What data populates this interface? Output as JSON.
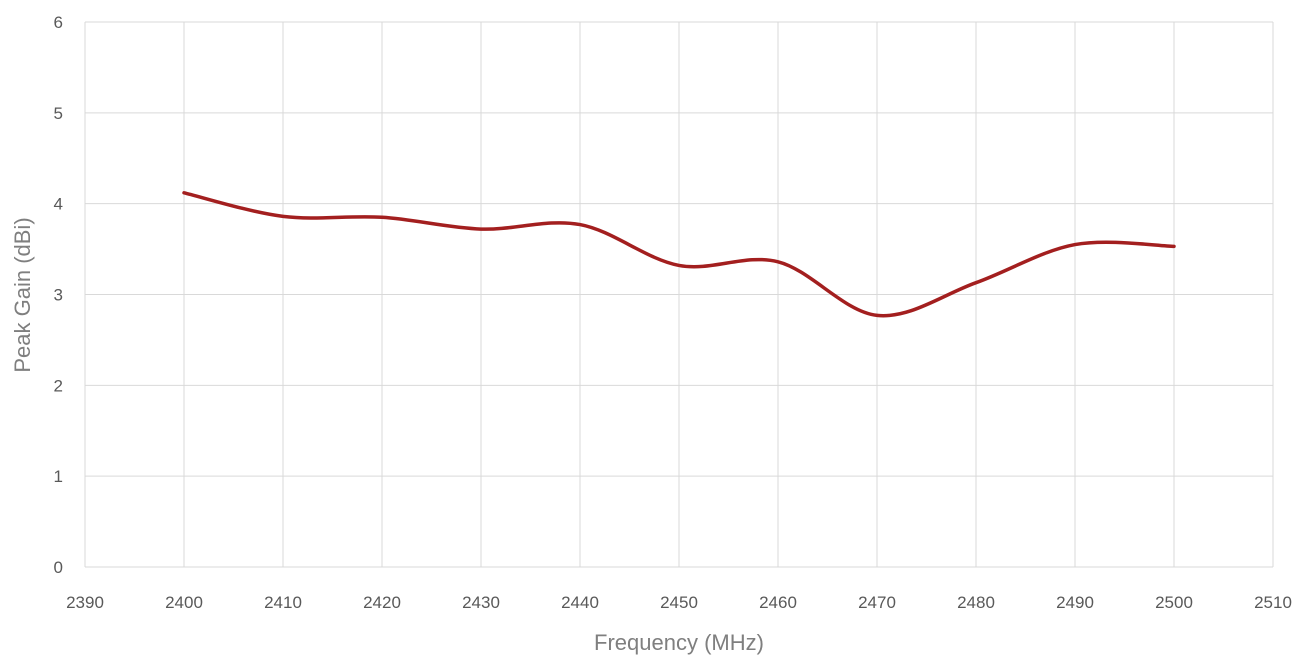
{
  "chart_data": {
    "type": "line",
    "title": "",
    "xlabel": "Frequency (MHz)",
    "ylabel": "Peak Gain (dBi)",
    "xlim": [
      2390,
      2510
    ],
    "ylim": [
      0,
      6
    ],
    "x_ticks": [
      2390,
      2400,
      2410,
      2420,
      2430,
      2440,
      2450,
      2460,
      2470,
      2480,
      2490,
      2500,
      2510
    ],
    "y_ticks": [
      0,
      1,
      2,
      3,
      4,
      5,
      6
    ],
    "grid": true,
    "legend": "none",
    "series": [
      {
        "color": "#a31f1f",
        "smooth": true,
        "x": [
          2400,
          2410,
          2420,
          2430,
          2440,
          2450,
          2460,
          2470,
          2480,
          2490,
          2500
        ],
        "y": [
          4.12,
          3.86,
          3.85,
          3.72,
          3.77,
          3.32,
          3.36,
          2.77,
          3.13,
          3.55,
          3.53
        ]
      }
    ]
  }
}
